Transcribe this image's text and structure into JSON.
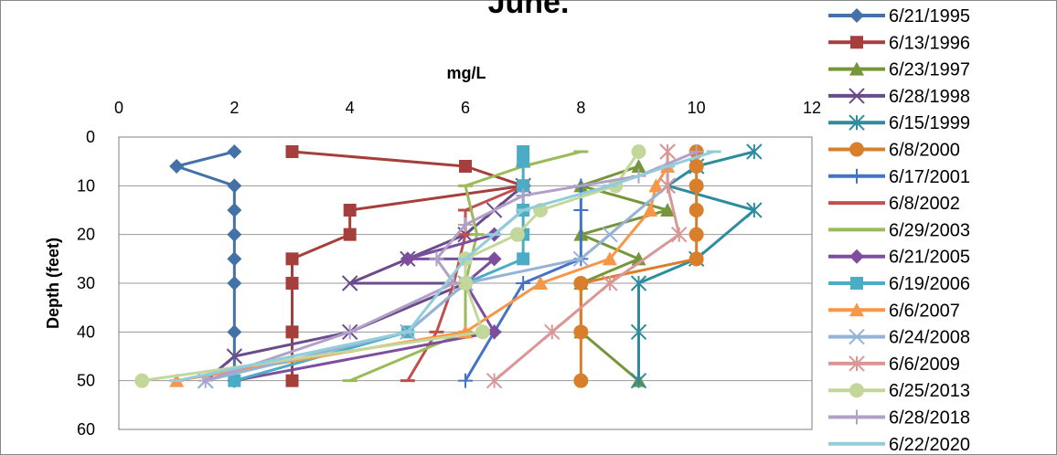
{
  "chart_data": {
    "type": "line",
    "title": "June.",
    "xlabel": "mg/L",
    "ylabel": "Depth (feet)",
    "xlim": [
      0,
      12
    ],
    "ylim": [
      0,
      60
    ],
    "x_axis_position": "top",
    "y_axis_reversed": true,
    "xticks": [
      "0",
      "2",
      "4",
      "6",
      "8",
      "10",
      "12"
    ],
    "yticks": [
      "0",
      "10",
      "20",
      "30",
      "40",
      "50",
      "60"
    ],
    "grid": "horizontal",
    "legend": "right",
    "series": [
      {
        "name": "6/21/1995",
        "color": "#4472A8",
        "marker": "diamond",
        "x": [
          2,
          1,
          2,
          2,
          2,
          2,
          2,
          2,
          2
        ],
        "y": [
          3,
          6,
          10,
          15,
          20,
          25,
          30,
          40,
          50
        ]
      },
      {
        "name": "6/13/1996",
        "color": "#A53F3C",
        "marker": "square",
        "x": [
          3,
          6,
          7,
          4,
          4,
          3,
          3,
          3,
          3
        ],
        "y": [
          3,
          6,
          10,
          15,
          20,
          25,
          30,
          40,
          50
        ]
      },
      {
        "name": "6/23/1997",
        "color": "#77963B",
        "marker": "triangle",
        "x": [
          9,
          8,
          9.5,
          8,
          9,
          8,
          8,
          9
        ],
        "y": [
          6,
          10,
          15,
          20,
          25,
          30,
          40,
          50
        ]
      },
      {
        "name": "6/28/1998",
        "color": "#6A4B8C",
        "marker": "x",
        "x": [
          7,
          6.5,
          6,
          5,
          4,
          6,
          4,
          2,
          1.5
        ],
        "y": [
          10,
          15,
          20,
          25,
          30,
          30,
          40,
          45,
          50
        ]
      },
      {
        "name": "6/15/1999",
        "color": "#2E8C9E",
        "marker": "star",
        "x": [
          11,
          10,
          9.5,
          11,
          10,
          9,
          9,
          9
        ],
        "y": [
          3,
          6,
          10,
          15,
          25,
          30,
          40,
          50
        ]
      },
      {
        "name": "6/8/2000",
        "color": "#D97E2B",
        "marker": "circle",
        "x": [
          10,
          10,
          10,
          10,
          10,
          10,
          8,
          8,
          8
        ],
        "y": [
          3,
          6,
          10,
          15,
          20,
          25,
          30,
          40,
          50
        ]
      },
      {
        "name": "6/17/2001",
        "color": "#4472C4",
        "marker": "plus",
        "x": [
          8,
          8,
          8,
          7,
          6.5,
          6
        ],
        "y": [
          10,
          15,
          25,
          30,
          40,
          50
        ]
      },
      {
        "name": "6/8/2002",
        "color": "#C0504D",
        "marker": "dash",
        "x": [
          7,
          6,
          6,
          5.8,
          5.5,
          5
        ],
        "y": [
          10,
          15,
          20,
          30,
          40,
          50
        ]
      },
      {
        "name": "6/29/2003",
        "color": "#9BBB59",
        "marker": "dash",
        "x": [
          8,
          7,
          6,
          6.2,
          6,
          6,
          4
        ],
        "y": [
          3,
          6,
          10,
          20,
          30,
          40,
          50
        ]
      },
      {
        "name": "6/21/2005",
        "color": "#7D4E9E",
        "marker": "diamond",
        "x": [
          7,
          6.5,
          5,
          6.5,
          6,
          6.5,
          2
        ],
        "y": [
          15,
          20,
          25,
          25,
          30,
          40,
          50
        ]
      },
      {
        "name": "6/19/2006",
        "color": "#4BACC6",
        "marker": "square",
        "x": [
          7,
          7,
          7,
          7,
          7,
          7,
          6,
          5,
          2
        ],
        "y": [
          3,
          5,
          10,
          15,
          20,
          25,
          30,
          40,
          50
        ]
      },
      {
        "name": "6/6/2007",
        "color": "#F79646",
        "marker": "triangle",
        "x": [
          9.5,
          9.3,
          9.2,
          8.5,
          7.3,
          6,
          1
        ],
        "y": [
          6,
          10,
          15,
          25,
          30,
          40,
          50
        ]
      },
      {
        "name": "6/24/2008",
        "color": "#95B3D7",
        "marker": "x",
        "x": [
          9.5,
          9.5,
          8.5,
          8,
          6,
          5,
          1.5
        ],
        "y": [
          3,
          10,
          20,
          25,
          30,
          40,
          50
        ]
      },
      {
        "name": "6/6/2009",
        "color": "#DA9694",
        "marker": "star",
        "x": [
          9.5,
          9.5,
          9.7,
          8.5,
          7.5,
          6.5
        ],
        "y": [
          3,
          10,
          20,
          30,
          40,
          50
        ]
      },
      {
        "name": "6/25/2013",
        "color": "#C4D79B",
        "marker": "circle",
        "x": [
          9,
          8.6,
          7.3,
          6.9,
          6,
          6,
          6.3,
          0.4
        ],
        "y": [
          3,
          10,
          15,
          20,
          25,
          30,
          40,
          50
        ]
      },
      {
        "name": "6/28/2018",
        "color": "#B1A0C7",
        "marker": "plus",
        "x": [
          10,
          9,
          7,
          6,
          5.5,
          5.8,
          4,
          1.5
        ],
        "y": [
          3,
          8,
          12,
          18,
          25,
          30,
          40,
          50
        ]
      },
      {
        "name": "6/22/2020",
        "color": "#92CDDC",
        "marker": "dash",
        "x": [
          10.3,
          9.5,
          8.5,
          7,
          6.5,
          6,
          5,
          1
        ],
        "y": [
          3,
          6,
          10,
          15,
          20,
          25,
          40,
          50
        ]
      }
    ]
  }
}
